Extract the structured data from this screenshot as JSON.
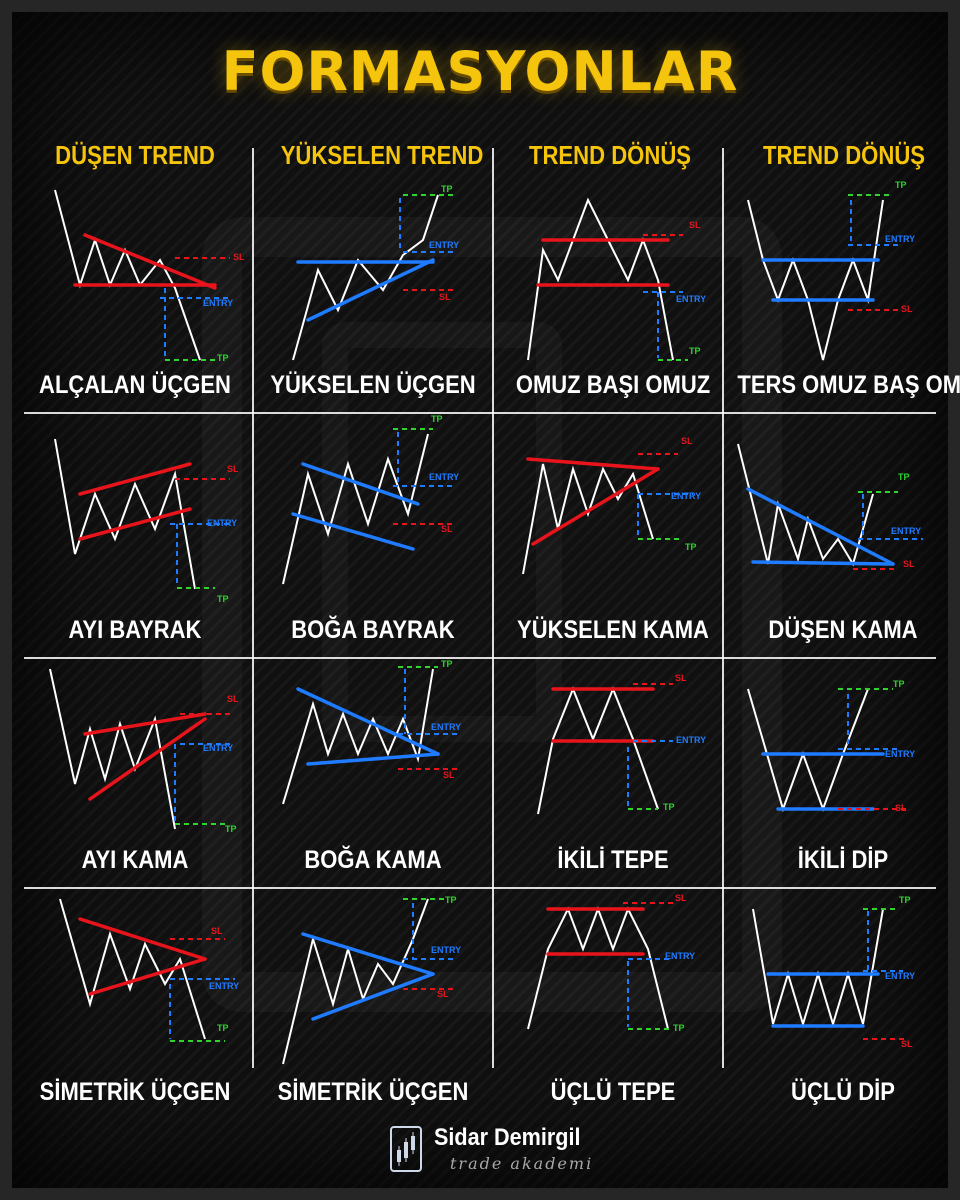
{
  "title": "FORMASYONLAR",
  "columns": [
    "DÜŞEN TREND",
    "YÜKSELEN TREND",
    "TREND DÖNÜŞ",
    "TREND DÖNÜŞ"
  ],
  "tags": {
    "tp": "TP",
    "sl": "SL",
    "entry": "ENTRY"
  },
  "colors": {
    "accent": "#f5c40c",
    "red": "#e8141c",
    "blue": "#1f7bff",
    "green": "#2ed52e",
    "white": "#ffffff"
  },
  "patterns": [
    [
      "ALÇALAN ÜÇGEN",
      "YÜKSELEN ÜÇGEN",
      "OMUZ BAŞI OMUZ",
      "TERS OMUZ BAŞ OMUZ"
    ],
    [
      "AYI BAYRAK",
      "BOĞA BAYRAK",
      "YÜKSELEN KAMA",
      "DÜŞEN KAMA"
    ],
    [
      "AYI KAMA",
      "BOĞA KAMA",
      "İKİLİ TEPE",
      "İKİLİ DİP"
    ],
    [
      "SİMETRİK ÜÇGEN",
      "SİMETRİK ÜÇGEN",
      "ÜÇLÜ TEPE",
      "ÜÇLÜ DİP"
    ]
  ],
  "footer": {
    "brand": "Sidar Demirgil",
    "tagline": "trade akademi",
    "logo_icon": "chart-bars-icon"
  }
}
